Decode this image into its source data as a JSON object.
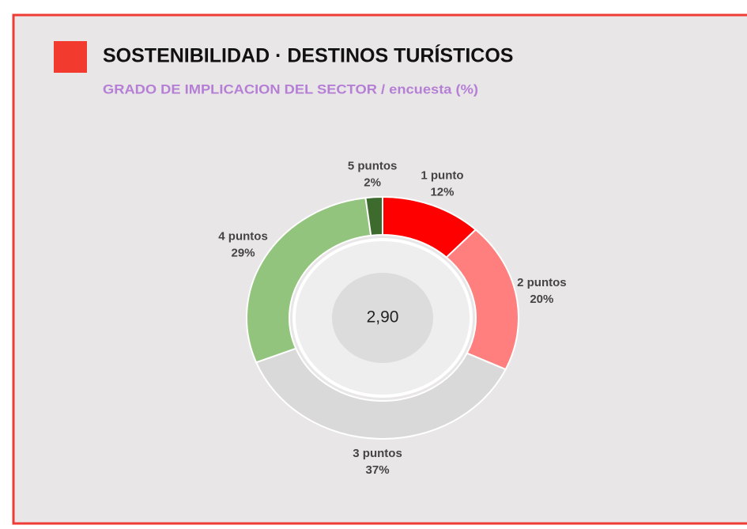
{
  "chart_data": {
    "type": "donut",
    "title": "SOSTENIBILIDAD · DESTINOS TURÍSTICOS",
    "subtitle": "GRADO DE IMPLICACION DEL SECTOR / encuesta (%)",
    "center_label": "2,90",
    "categories": [
      "1 punto",
      "2 puntos",
      "3 puntos",
      "4 puntos",
      "5 puntos"
    ],
    "values": [
      12,
      20,
      37,
      29,
      2
    ],
    "value_labels": [
      "12%",
      "20%",
      "37%",
      "29%",
      "2%"
    ],
    "colors": [
      "#ff0000",
      "#ff7f7f",
      "#d9d9d9",
      "#93c47d",
      "#3d6b2e"
    ]
  }
}
